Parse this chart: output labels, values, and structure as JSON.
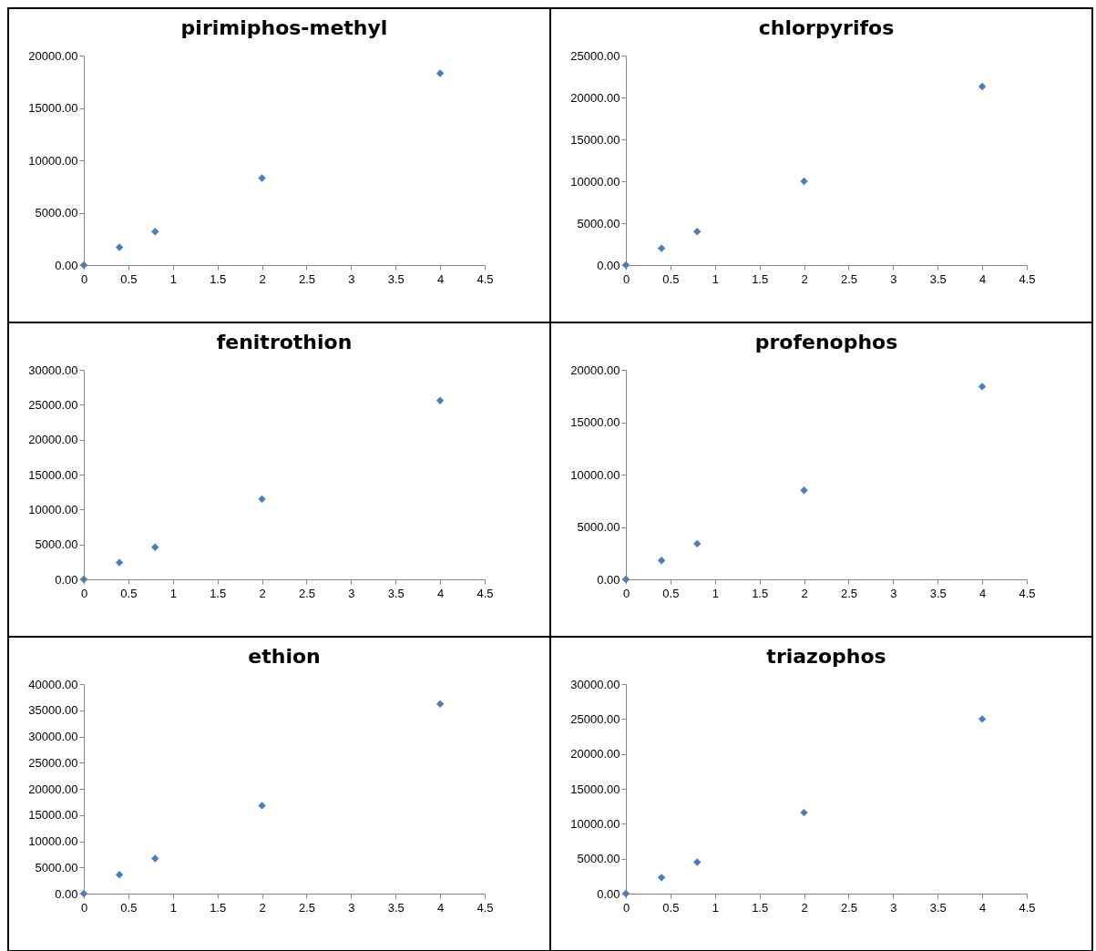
{
  "chart_data": [
    {
      "type": "scatter",
      "title": "pirimiphos-methyl",
      "x": [
        0,
        0.4,
        0.8,
        2,
        4
      ],
      "values": [
        0,
        1700,
        3200,
        8300,
        18300
      ],
      "color": "#4a7ebb",
      "marker": "diamond",
      "grid": false,
      "xlim": [
        0,
        4.5
      ],
      "xticks": [
        0,
        0.5,
        1,
        1.5,
        2,
        2.5,
        3,
        3.5,
        4,
        4.5
      ],
      "ylim": [
        0,
        20000
      ],
      "yticks": [
        {
          "value": 0,
          "label": "0.00"
        },
        {
          "value": 5000,
          "label": "5000.00"
        },
        {
          "value": 10000,
          "label": "10000.00"
        },
        {
          "value": 15000,
          "label": "15000.00"
        },
        {
          "value": 20000,
          "label": "20000.00"
        }
      ]
    },
    {
      "type": "scatter",
      "title": "chlorpyrifos",
      "x": [
        0,
        0.4,
        0.8,
        2,
        4
      ],
      "values": [
        0,
        2000,
        4000,
        10000,
        21300
      ],
      "color": "#4a7ebb",
      "marker": "diamond",
      "grid": false,
      "xlim": [
        0,
        4.5
      ],
      "xticks": [
        0,
        0.5,
        1,
        1.5,
        2,
        2.5,
        3,
        3.5,
        4,
        4.5
      ],
      "ylim": [
        0,
        25000
      ],
      "yticks": [
        {
          "value": 0,
          "label": "0.00"
        },
        {
          "value": 5000,
          "label": "5000.00"
        },
        {
          "value": 10000,
          "label": "10000.00"
        },
        {
          "value": 15000,
          "label": "15000.00"
        },
        {
          "value": 20000,
          "label": "20000.00"
        },
        {
          "value": 25000,
          "label": "25000.00"
        }
      ]
    },
    {
      "type": "scatter",
      "title": "fenitrothion",
      "x": [
        0,
        0.4,
        0.8,
        2,
        4
      ],
      "values": [
        0,
        2400,
        4600,
        11500,
        25600
      ],
      "color": "#4a7ebb",
      "marker": "diamond",
      "grid": false,
      "xlim": [
        0,
        4.5
      ],
      "xticks": [
        0,
        0.5,
        1,
        1.5,
        2,
        2.5,
        3,
        3.5,
        4,
        4.5
      ],
      "ylim": [
        0,
        30000
      ],
      "yticks": [
        {
          "value": 0,
          "label": "0.00"
        },
        {
          "value": 5000,
          "label": "5000.00"
        },
        {
          "value": 10000,
          "label": "10000.00"
        },
        {
          "value": 15000,
          "label": "15000.00"
        },
        {
          "value": 20000,
          "label": "20000.00"
        },
        {
          "value": 25000,
          "label": "25000.00"
        },
        {
          "value": 30000,
          "label": "30000.00"
        }
      ]
    },
    {
      "type": "scatter",
      "title": "profenophos",
      "x": [
        0,
        0.4,
        0.8,
        2,
        4
      ],
      "values": [
        0,
        1800,
        3400,
        8500,
        18400
      ],
      "color": "#4a7ebb",
      "marker": "diamond",
      "grid": false,
      "xlim": [
        0,
        4.5
      ],
      "xticks": [
        0,
        0.5,
        1,
        1.5,
        2,
        2.5,
        3,
        3.5,
        4,
        4.5
      ],
      "ylim": [
        0,
        20000
      ],
      "yticks": [
        {
          "value": 0,
          "label": "0.00"
        },
        {
          "value": 5000,
          "label": "5000.00"
        },
        {
          "value": 10000,
          "label": "10000.00"
        },
        {
          "value": 15000,
          "label": "15000.00"
        },
        {
          "value": 20000,
          "label": "20000.00"
        }
      ]
    },
    {
      "type": "scatter",
      "title": "ethion",
      "x": [
        0,
        0.4,
        0.8,
        2,
        4
      ],
      "values": [
        0,
        3600,
        6700,
        16800,
        36200
      ],
      "color": "#4a7ebb",
      "marker": "diamond",
      "grid": false,
      "xlim": [
        0,
        4.5
      ],
      "xticks": [
        0,
        0.5,
        1,
        1.5,
        2,
        2.5,
        3,
        3.5,
        4,
        4.5
      ],
      "ylim": [
        0,
        40000
      ],
      "yticks": [
        {
          "value": 0,
          "label": "0.00"
        },
        {
          "value": 5000,
          "label": "5000.00"
        },
        {
          "value": 10000,
          "label": "10000.00"
        },
        {
          "value": 15000,
          "label": "15000.00"
        },
        {
          "value": 20000,
          "label": "20000.00"
        },
        {
          "value": 25000,
          "label": "25000.00"
        },
        {
          "value": 30000,
          "label": "30000.00"
        },
        {
          "value": 35000,
          "label": "35000.00"
        },
        {
          "value": 40000,
          "label": "40000.00"
        }
      ]
    },
    {
      "type": "scatter",
      "title": "triazophos",
      "x": [
        0,
        0.4,
        0.8,
        2,
        4
      ],
      "values": [
        0,
        2300,
        4500,
        11600,
        25000
      ],
      "color": "#4a7ebb",
      "marker": "diamond",
      "grid": false,
      "xlim": [
        0,
        4.5
      ],
      "xticks": [
        0,
        0.5,
        1,
        1.5,
        2,
        2.5,
        3,
        3.5,
        4,
        4.5
      ],
      "ylim": [
        0,
        30000
      ],
      "yticks": [
        {
          "value": 0,
          "label": "0.00"
        },
        {
          "value": 5000,
          "label": "5000.00"
        },
        {
          "value": 10000,
          "label": "10000.00"
        },
        {
          "value": 15000,
          "label": "15000.00"
        },
        {
          "value": 20000,
          "label": "20000.00"
        },
        {
          "value": 25000,
          "label": "25000.00"
        },
        {
          "value": 30000,
          "label": "30000.00"
        }
      ]
    }
  ]
}
